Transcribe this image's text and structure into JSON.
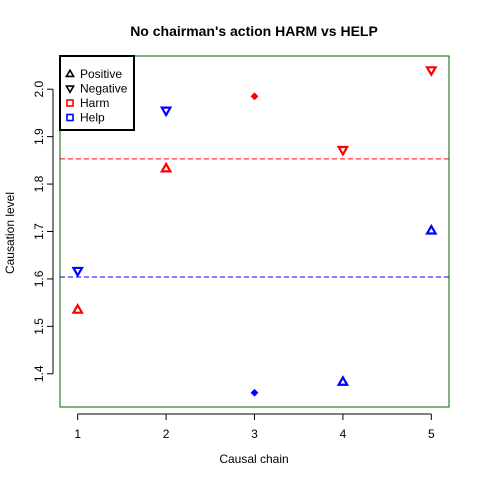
{
  "chart_data": {
    "type": "scatter",
    "title": "No chairman's action HARM vs HELP",
    "xlabel": "Causal chain",
    "ylabel": "Causation level",
    "xlim": [
      0.8,
      5.2
    ],
    "ylim": [
      1.33,
      2.07
    ],
    "x_ticks": [
      "1",
      "2",
      "3",
      "4",
      "5"
    ],
    "y_ticks": [
      "1.4",
      "1.5",
      "1.6",
      "1.7",
      "1.8",
      "1.9",
      "2.0"
    ],
    "grid": false,
    "legend_position": "top-left",
    "legend": [
      {
        "label": "Positive",
        "symbol": "triangle-up",
        "color": "#000000"
      },
      {
        "label": "Negative",
        "symbol": "triangle-down",
        "color": "#000000"
      },
      {
        "label": "Harm",
        "symbol": "square",
        "color": "#ff0000"
      },
      {
        "label": "Help",
        "symbol": "square",
        "color": "#0000ff"
      }
    ],
    "series": [
      {
        "category": "Harm",
        "color": "#ff0000",
        "points": [
          {
            "x": 1,
            "y": 1.535,
            "direction": "positive"
          },
          {
            "x": 2,
            "y": 1.833,
            "direction": "positive"
          },
          {
            "x": 3,
            "y": 1.985,
            "direction": "mixed"
          },
          {
            "x": 4,
            "y": 1.872,
            "direction": "negative"
          },
          {
            "x": 5,
            "y": 2.04,
            "direction": "negative"
          }
        ]
      },
      {
        "category": "Help",
        "color": "#0000ff",
        "points": [
          {
            "x": 1,
            "y": 1.617,
            "direction": "negative"
          },
          {
            "x": 2,
            "y": 1.955,
            "direction": "negative"
          },
          {
            "x": 3,
            "y": 1.36,
            "direction": "mixed"
          },
          {
            "x": 4,
            "y": 1.383,
            "direction": "positive"
          },
          {
            "x": 5,
            "y": 1.702,
            "direction": "positive"
          }
        ]
      }
    ],
    "reference_lines": [
      {
        "category": "Harm",
        "y": 1.853,
        "color": "#ff0000",
        "style": "dashed"
      },
      {
        "category": "Help",
        "y": 1.604,
        "color": "#0000ff",
        "style": "dashed"
      }
    ],
    "colors": {
      "plot_border": "#006400",
      "axis": "#000000"
    }
  }
}
